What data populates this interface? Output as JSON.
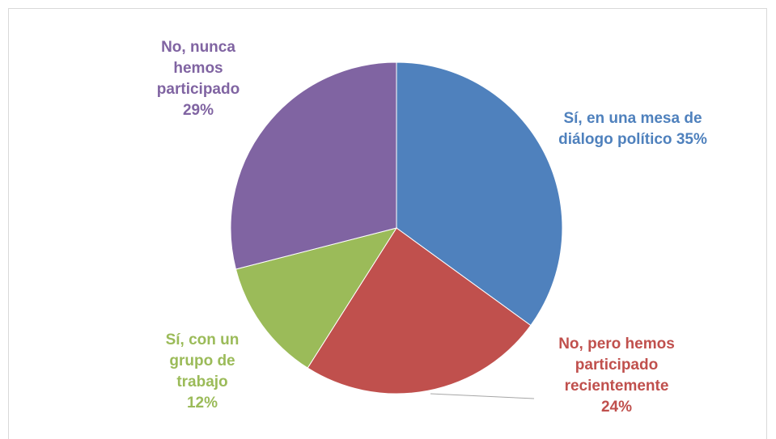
{
  "chart_data": {
    "type": "pie",
    "categories": [
      "Sí, en una mesa de diálogo político",
      "No, pero hemos participado recientemente",
      "Sí, con un grupo de trabajo",
      "No, nunca hemos participado"
    ],
    "values": [
      35,
      24,
      12,
      29
    ],
    "value_labels": [
      "35%",
      "24%",
      "12%",
      "29%"
    ],
    "colors": [
      "#4f81bd",
      "#c0504d",
      "#9bbb59",
      "#8064a2"
    ]
  }
}
